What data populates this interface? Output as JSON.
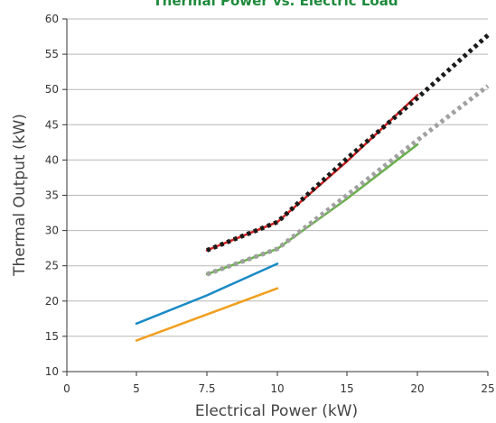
{
  "chart_data": {
    "type": "line",
    "title": "Thermal Power vs. Electric Load",
    "xlabel": "Electrical Power (kW)",
    "ylabel": "Thermal Output (kW)",
    "xlim": [
      0,
      25
    ],
    "ylim": [
      10,
      60
    ],
    "x_ticks": [
      "0",
      "5",
      "7.5",
      "10",
      "15",
      "20",
      "25"
    ],
    "x_tick_values": [
      0,
      5,
      7.5,
      10,
      15,
      20,
      25
    ],
    "y_ticks": [
      "10",
      "15",
      "20",
      "25",
      "30",
      "35",
      "40",
      "45",
      "50",
      "55",
      "60"
    ],
    "y_tick_values": [
      10,
      15,
      20,
      25,
      30,
      35,
      40,
      45,
      50,
      55,
      60
    ],
    "grid": "horizontal",
    "legend": "none",
    "series": [
      {
        "color": "#1a8ac6",
        "style": "solid",
        "points": [
          [
            5,
            16.8
          ],
          [
            7.5,
            20.8
          ],
          [
            10,
            25.3
          ]
        ]
      },
      {
        "color": "#f0a020",
        "style": "solid",
        "points": [
          [
            5,
            14.4
          ],
          [
            10,
            21.8
          ]
        ]
      },
      {
        "color": "#6ab04c",
        "style": "solid",
        "points": [
          [
            7.5,
            23.8
          ],
          [
            10,
            27.4
          ],
          [
            15,
            34.5
          ],
          [
            20,
            42.2
          ]
        ]
      },
      {
        "color": "#d32020",
        "style": "solid",
        "points": [
          [
            7.5,
            27.2
          ],
          [
            10,
            31.2
          ],
          [
            15,
            39.8
          ],
          [
            20,
            49.2
          ]
        ]
      },
      {
        "color": "#a0a0a0",
        "style": "dotted",
        "points": [
          [
            7.5,
            23.8
          ],
          [
            10,
            27.4
          ],
          [
            15,
            35.0
          ],
          [
            20,
            42.8
          ],
          [
            25,
            50.5
          ]
        ]
      },
      {
        "color": "#1a1a1a",
        "style": "dotted",
        "points": [
          [
            7.5,
            27.2
          ],
          [
            10,
            31.2
          ],
          [
            15,
            40.2
          ],
          [
            20,
            48.8
          ],
          [
            25,
            57.7
          ]
        ]
      }
    ]
  }
}
